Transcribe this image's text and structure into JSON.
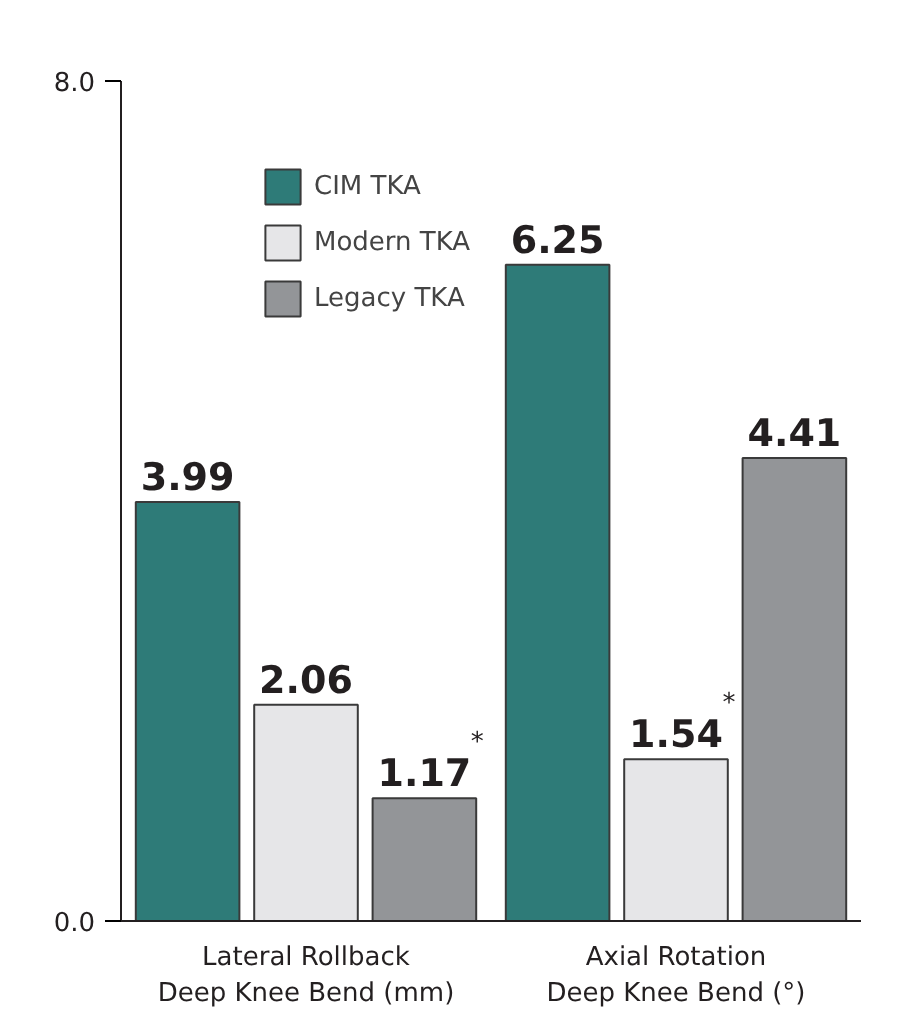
{
  "chart_data": {
    "type": "bar",
    "categories": [
      "Lateral Rollback\nDeep Knee Bend (mm)",
      "Axial Rotation\nDeep Knee Bend (°)"
    ],
    "series": [
      {
        "name": "CIM TKA",
        "color": "#2e7b78",
        "values": [
          3.99,
          6.25
        ],
        "value_labels": [
          "3.99",
          "6.25"
        ]
      },
      {
        "name": "Modern TKA",
        "color": "#e6e6e8",
        "values": [
          2.06,
          1.54
        ],
        "value_labels": [
          "2.06",
          "1.54$^{*}$"
        ]
      },
      {
        "name": "Legacy TKA",
        "color": "#939598",
        "values": [
          1.17,
          4.41
        ],
        "value_labels": [
          "1.17$^{*}$",
          "4.41"
        ]
      }
    ],
    "ylim": [
      0,
      8
    ],
    "yticks": [
      {
        "value": 0,
        "label": "0.0"
      },
      {
        "value": 8,
        "label": "8.0"
      }
    ],
    "grid": false,
    "legend": "top left"
  }
}
